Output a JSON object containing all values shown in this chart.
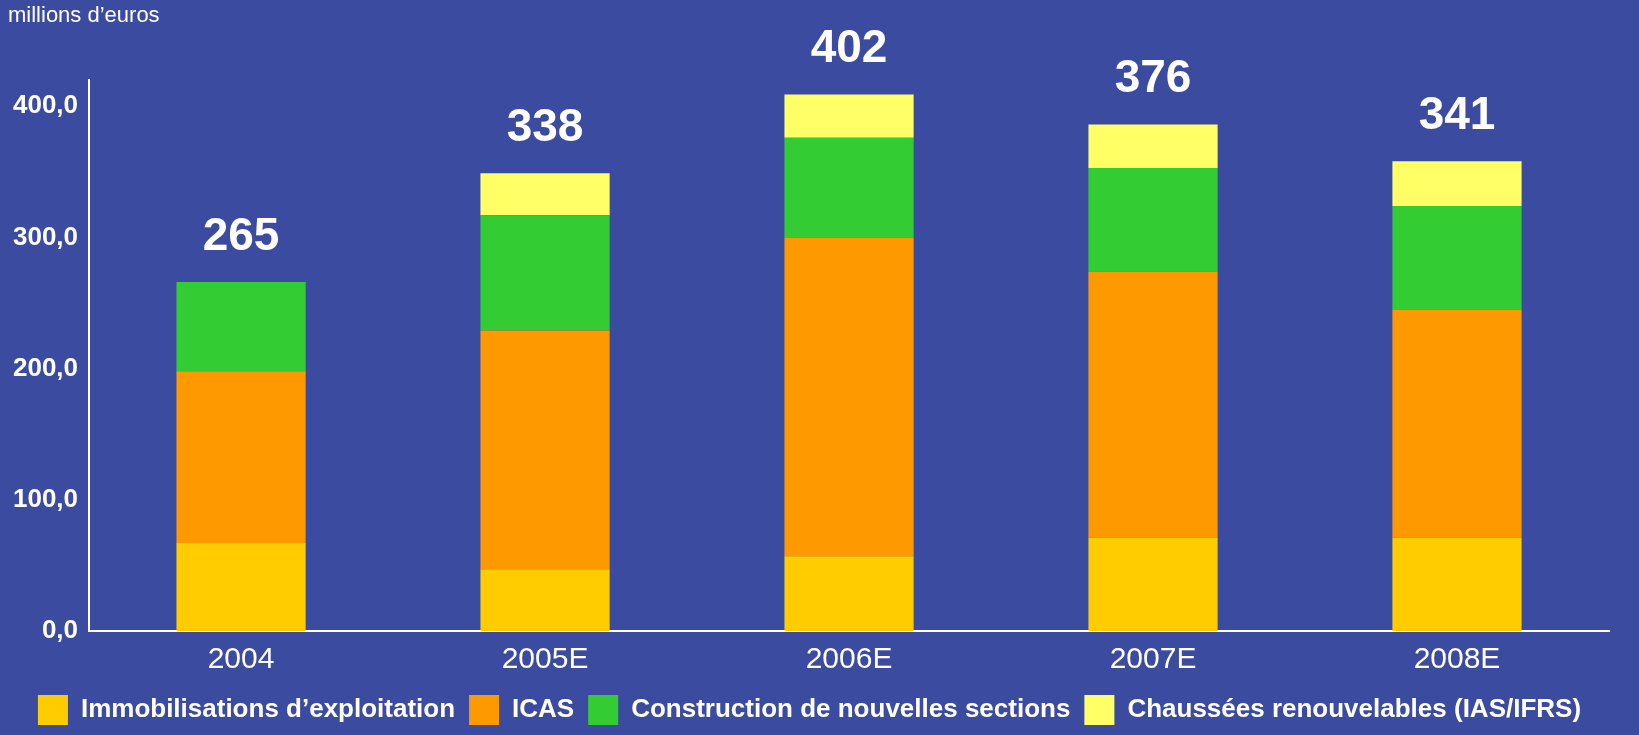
{
  "chart_data": {
    "type": "bar",
    "stacked": true,
    "ylabel": "millions d’euros",
    "categories": [
      "2004",
      "2005E",
      "2006E",
      "2007E",
      "2008E"
    ],
    "series": [
      {
        "name": "Immobilisations d’exploitation",
        "color": "#ffcc00",
        "values": [
          67,
          47,
          57,
          71,
          71
        ]
      },
      {
        "name": "ICAS",
        "color": "#ff9900",
        "values": [
          131,
          182,
          243,
          203,
          174
        ]
      },
      {
        "name": "Construction de nouvelles sections",
        "color": "#33cc33",
        "values": [
          68,
          88,
          76,
          79,
          79
        ]
      },
      {
        "name": "Chaussées renouvelables (IAS/IFRS)",
        "color": "#ffff66",
        "values": [
          null,
          32,
          33,
          33,
          34
        ]
      }
    ],
    "annotations": [
      "265",
      "338",
      "402",
      "376",
      "341"
    ],
    "ylim": [
      0,
      420
    ],
    "yticks": [
      {
        "value": 0,
        "label": "0,0"
      },
      {
        "value": 100,
        "label": "100,0"
      },
      {
        "value": 200,
        "label": "200,0"
      },
      {
        "value": 300,
        "label": "300,0"
      },
      {
        "value": 400,
        "label": "400,0"
      }
    ],
    "grid": false,
    "legend": "bottom"
  }
}
